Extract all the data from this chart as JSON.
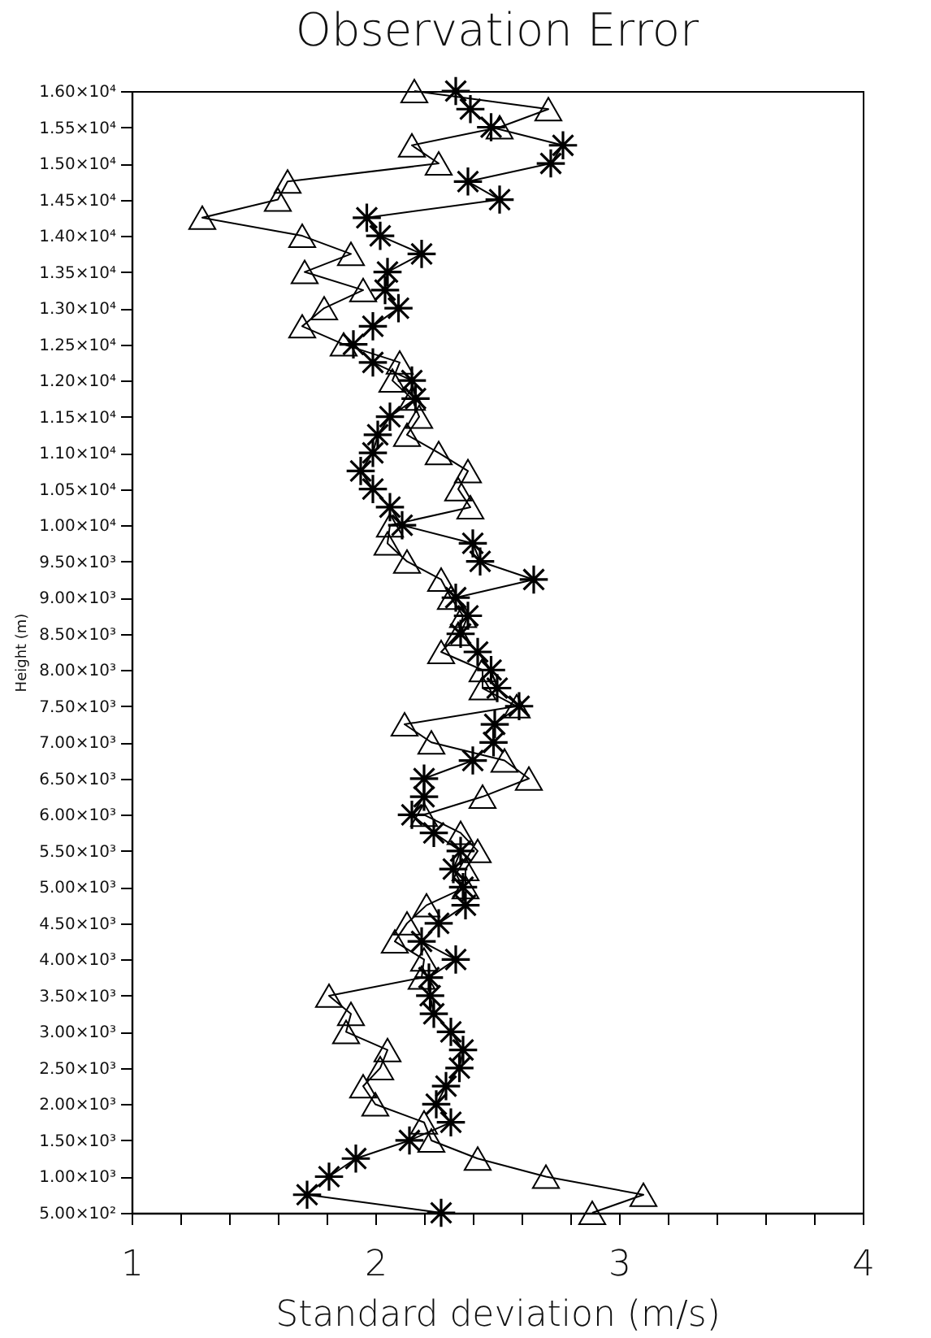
{
  "chart_data": {
    "type": "line",
    "title": "Observation Error",
    "xlabel": "Standard deviation (m/s)",
    "ylabel": "Height (m)",
    "xlim": [
      1,
      4
    ],
    "xticks": [
      1,
      {
        "value": 1.2,
        "label": null
      },
      {
        "value": 1.4,
        "label": null
      },
      {
        "value": 1.6,
        "label": null
      },
      {
        "value": 1.8,
        "label": null
      },
      2,
      {
        "value": 2.2,
        "label": null
      },
      {
        "value": 2.4,
        "label": null
      },
      {
        "value": 2.6,
        "label": null
      },
      {
        "value": 2.8,
        "label": null
      },
      3,
      {
        "value": 3.2,
        "label": null
      },
      {
        "value": 3.4,
        "label": null
      },
      {
        "value": 3.6,
        "label": null
      },
      {
        "value": 3.8,
        "label": null
      },
      4
    ],
    "ylim": [
      500,
      16000
    ],
    "yticks": [
      {
        "value": 500,
        "label": "5.00×10²"
      },
      {
        "value": 1000,
        "label": "1.00×10³"
      },
      {
        "value": 1500,
        "label": "1.50×10³"
      },
      {
        "value": 2000,
        "label": "2.00×10³"
      },
      {
        "value": 2500,
        "label": "2.50×10³"
      },
      {
        "value": 3000,
        "label": "3.00×10³"
      },
      {
        "value": 3500,
        "label": "3.50×10³"
      },
      {
        "value": 4000,
        "label": "4.00×10³"
      },
      {
        "value": 4500,
        "label": "4.50×10³"
      },
      {
        "value": 5000,
        "label": "5.00×10³"
      },
      {
        "value": 5500,
        "label": "5.50×10³"
      },
      {
        "value": 6000,
        "label": "6.00×10³"
      },
      {
        "value": 6500,
        "label": "6.50×10³"
      },
      {
        "value": 7000,
        "label": "7.00×10³"
      },
      {
        "value": 7500,
        "label": "7.50×10³"
      },
      {
        "value": 8000,
        "label": "8.00×10³"
      },
      {
        "value": 8500,
        "label": "8.50×10³"
      },
      {
        "value": 9000,
        "label": "9.00×10³"
      },
      {
        "value": 9500,
        "label": "9.50×10³"
      },
      {
        "value": 10000,
        "label": "1.00×10⁴"
      },
      {
        "value": 10500,
        "label": "1.05×10⁴"
      },
      {
        "value": 11000,
        "label": "1.10×10⁴"
      },
      {
        "value": 11500,
        "label": "1.15×10⁴"
      },
      {
        "value": 12000,
        "label": "1.20×10⁴"
      },
      {
        "value": 12500,
        "label": "1.25×10⁴"
      },
      {
        "value": 13000,
        "label": "1.30×10⁴"
      },
      {
        "value": 13500,
        "label": "1.35×10⁴"
      },
      {
        "value": 14000,
        "label": "1.40×10⁴"
      },
      {
        "value": 14500,
        "label": "1.45×10⁴"
      },
      {
        "value": 15000,
        "label": "1.50×10⁴"
      },
      {
        "value": 15500,
        "label": "1.55×10⁴"
      },
      {
        "value": 16000,
        "label": "1.60×10⁴"
      }
    ],
    "grid": false,
    "line_style": "solid",
    "series": [
      {
        "color": "#000000",
        "marker": "triangle",
        "x": [
          2.16,
          2.71,
          2.51,
          2.15,
          2.26,
          1.64,
          1.6,
          1.29,
          1.7,
          1.9,
          1.71,
          1.95,
          1.79,
          1.7,
          1.87,
          2.1,
          2.07,
          2.15,
          2.18,
          2.13,
          2.26,
          2.38,
          2.34,
          2.39,
          2.06,
          2.05,
          2.13,
          2.27,
          2.31,
          2.36,
          2.34,
          2.27,
          2.44,
          2.44,
          2.58,
          2.12,
          2.23,
          2.53,
          2.63,
          2.44,
          2.2,
          2.35,
          2.42,
          2.37,
          2.37,
          2.21,
          2.13,
          2.08,
          2.2,
          2.19,
          1.81,
          1.9,
          1.88,
          2.05,
          2.02,
          1.95,
          2.0,
          2.2,
          2.23,
          2.42,
          2.7,
          3.1,
          2.89
        ],
        "values": [
          16000,
          15750,
          15500,
          15250,
          15000,
          14750,
          14500,
          14250,
          14000,
          13750,
          13500,
          13250,
          13000,
          12750,
          12500,
          12250,
          12000,
          11750,
          11500,
          11250,
          11000,
          10750,
          10500,
          10250,
          10000,
          9750,
          9500,
          9250,
          9000,
          8750,
          8500,
          8250,
          8000,
          7750,
          7500,
          7250,
          7000,
          6750,
          6500,
          6250,
          6000,
          5750,
          5500,
          5250,
          5000,
          4750,
          4500,
          4250,
          4000,
          3750,
          3500,
          3250,
          3000,
          2750,
          2500,
          2250,
          2000,
          1750,
          1500,
          1250,
          1000,
          750,
          500
        ]
      },
      {
        "color": "#000000",
        "marker": "cross",
        "x": [
          2.33,
          2.39,
          2.475,
          2.77,
          2.72,
          2.38,
          2.51,
          1.965,
          2.02,
          2.19,
          2.05,
          2.04,
          2.095,
          1.99,
          1.91,
          1.99,
          2.15,
          2.165,
          2.06,
          2.01,
          1.99,
          1.94,
          1.99,
          2.06,
          2.11,
          2.4,
          2.43,
          2.65,
          2.33,
          2.38,
          2.35,
          2.42,
          2.475,
          2.5,
          2.59,
          2.49,
          2.485,
          2.4,
          2.2,
          2.2,
          2.15,
          2.24,
          2.35,
          2.32,
          2.36,
          2.37,
          2.26,
          2.19,
          2.33,
          2.22,
          2.225,
          2.24,
          2.31,
          2.36,
          2.345,
          2.29,
          2.25,
          2.31,
          2.14,
          1.92,
          1.81,
          1.72,
          2.27
        ],
        "values": [
          16000,
          15750,
          15500,
          15250,
          15000,
          14750,
          14500,
          14250,
          14000,
          13750,
          13500,
          13250,
          13000,
          12750,
          12500,
          12250,
          12000,
          11750,
          11500,
          11250,
          11000,
          10750,
          10500,
          10250,
          10000,
          9750,
          9500,
          9250,
          9000,
          8750,
          8500,
          8250,
          8000,
          7750,
          7500,
          7250,
          7000,
          6750,
          6500,
          6250,
          6000,
          5750,
          5500,
          5250,
          5000,
          4750,
          4500,
          4250,
          4000,
          3750,
          3500,
          3250,
          3000,
          2750,
          2500,
          2250,
          2000,
          1750,
          1500,
          1250,
          1000,
          750,
          500
        ]
      }
    ]
  }
}
